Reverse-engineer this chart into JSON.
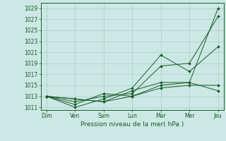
{
  "x_labels": [
    "Dim",
    "Ven",
    "Sam",
    "Lun",
    "Mar",
    "Mer",
    "Jeu"
  ],
  "x_positions": [
    0,
    1,
    2,
    3,
    4,
    5,
    6
  ],
  "xlabel": "Pression niveau de la mer( hPa )",
  "ylim": [
    1010.5,
    1030
  ],
  "yticks": [
    1011,
    1013,
    1015,
    1017,
    1019,
    1021,
    1023,
    1025,
    1027,
    1029
  ],
  "background_color": "#cce8e4",
  "grid_color": "#aacccc",
  "line_color": "#1a5c2a",
  "series": [
    [
      1013.0,
      1011.5,
      1013.5,
      1013.0,
      1015.0,
      1015.5,
      1029.0
    ],
    [
      1013.0,
      1012.0,
      1013.0,
      1013.5,
      1018.5,
      1019.0,
      1027.5
    ],
    [
      1013.0,
      1011.0,
      1012.5,
      1014.5,
      1020.5,
      1017.5,
      1022.0
    ],
    [
      1013.0,
      1012.5,
      1012.0,
      1014.0,
      1015.5,
      1015.5,
      1014.0
    ],
    [
      1013.0,
      1012.5,
      1012.0,
      1013.0,
      1014.5,
      1015.0,
      1015.0
    ]
  ]
}
